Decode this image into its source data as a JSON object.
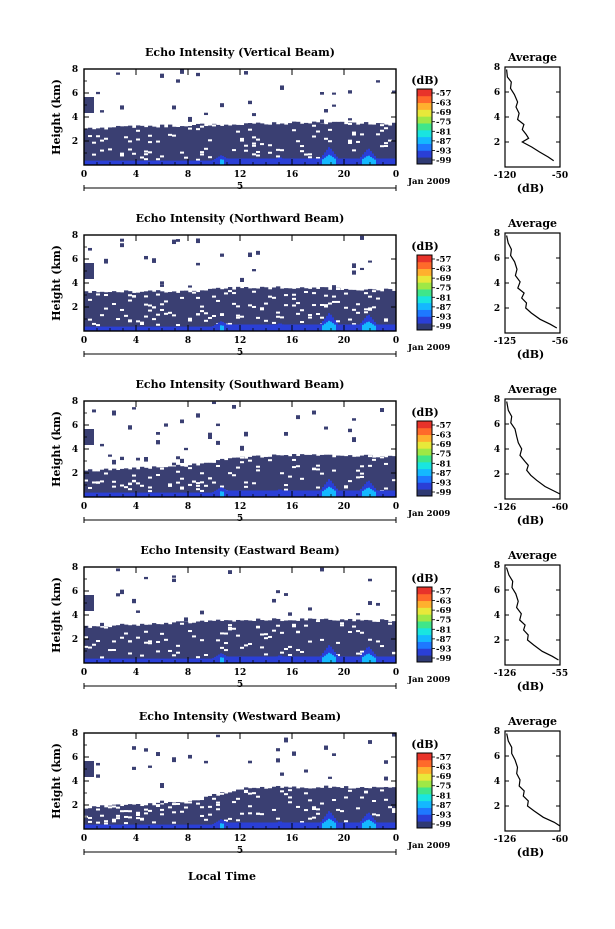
{
  "figure": {
    "xlabel": "Local Time",
    "date_label": "Jan 2009",
    "day_label": "5",
    "avg_title": "Average",
    "avg_xlabel": "(dB)",
    "colorbar_title": "(dB)",
    "colorbar_ticks": [
      "-57",
      "-63",
      "-69",
      "-75",
      "-81",
      "-87",
      "-93",
      "-99"
    ],
    "colormap": [
      "#2f3a73",
      "#2a3fd6",
      "#1e78ff",
      "#14b8ff",
      "#19e5e0",
      "#3fe68a",
      "#9fe846",
      "#e8e83a",
      "#ffb02e",
      "#ff6a2a",
      "#e8332a"
    ],
    "no_echo_color": "#ffffff",
    "panel_fill_color": "#3a3f72"
  },
  "chart_data": [
    {
      "type": "heatmap",
      "title": "Echo Intensity (Vertical Beam)",
      "ylabel": "Height (km)",
      "xlim": [
        0,
        24
      ],
      "ylim": [
        0,
        8
      ],
      "x_ticks": [
        "0",
        "4",
        "8",
        "12",
        "16",
        "20",
        "0"
      ],
      "y_ticks": [
        "2",
        "4",
        "6",
        "8"
      ],
      "colorbar_range": [
        -99,
        -57
      ],
      "echo_top_km": {
        "hours": [
          0,
          4,
          8,
          12,
          16,
          20,
          24
        ],
        "height": [
          3.0,
          3.2,
          3.3,
          3.4,
          3.5,
          3.5,
          3.4
        ]
      },
      "average_profile": {
        "xlim": [
          -120,
          -50
        ],
        "x_ticks": [
          "-120",
          "-50"
        ],
        "ylim": [
          0,
          8
        ],
        "y_ticks": [
          "2",
          "4",
          "6",
          "8"
        ],
        "dB": [
          -118,
          -117,
          -112,
          -113,
          -108,
          -104,
          -106,
          -102,
          -104,
          -96,
          -98,
          -93,
          -90,
          -98,
          -86,
          -76,
          -65,
          -58
        ],
        "height_km": [
          7.8,
          7.2,
          6.8,
          6.3,
          5.8,
          5.2,
          4.8,
          4.3,
          3.8,
          3.4,
          3.0,
          2.6,
          2.3,
          2.0,
          1.6,
          1.2,
          0.8,
          0.5
        ]
      }
    },
    {
      "type": "heatmap",
      "title": "Echo Intensity (Northward Beam)",
      "ylabel": "Height (km)",
      "xlim": [
        0,
        24
      ],
      "ylim": [
        0,
        8
      ],
      "x_ticks": [
        "0",
        "4",
        "8",
        "12",
        "16",
        "20",
        "0"
      ],
      "y_ticks": [
        "2",
        "4",
        "6",
        "8"
      ],
      "colorbar_range": [
        -99,
        -57
      ],
      "echo_top_km": {
        "hours": [
          0,
          4,
          8,
          12,
          16,
          20,
          24
        ],
        "height": [
          3.2,
          3.3,
          3.3,
          3.6,
          3.6,
          3.5,
          3.4
        ]
      },
      "average_profile": {
        "xlim": [
          -125,
          -56
        ],
        "x_ticks": [
          "-125",
          "-56"
        ],
        "ylim": [
          0,
          8
        ],
        "y_ticks": [
          "2",
          "4",
          "6",
          "8"
        ],
        "dB": [
          -123,
          -121,
          -117,
          -118,
          -113,
          -110,
          -112,
          -106,
          -109,
          -101,
          -104,
          -98,
          -99,
          -92,
          -81,
          -68,
          -60
        ],
        "height_km": [
          7.8,
          7.2,
          6.7,
          6.2,
          5.7,
          5.1,
          4.6,
          4.1,
          3.6,
          3.2,
          2.8,
          2.4,
          2.0,
          1.6,
          1.1,
          0.7,
          0.4
        ]
      }
    },
    {
      "type": "heatmap",
      "title": "Echo Intensity (Southward Beam)",
      "ylabel": "Height (km)",
      "xlim": [
        0,
        24
      ],
      "ylim": [
        0,
        8
      ],
      "x_ticks": [
        "0",
        "4",
        "8",
        "12",
        "16",
        "20",
        "0"
      ],
      "y_ticks": [
        "2",
        "4",
        "6",
        "8"
      ],
      "colorbar_range": [
        -99,
        -57
      ],
      "echo_top_km": {
        "hours": [
          0,
          4,
          8,
          12,
          16,
          20,
          24
        ],
        "height": [
          2.2,
          2.4,
          2.6,
          3.3,
          3.5,
          3.4,
          3.4
        ]
      },
      "average_profile": {
        "xlim": [
          -126,
          -60
        ],
        "x_ticks": [
          "-126",
          "-60"
        ],
        "ylim": [
          0,
          8
        ],
        "y_ticks": [
          "2",
          "4",
          "6",
          "8"
        ],
        "dB": [
          -124,
          -122,
          -118,
          -119,
          -114,
          -112,
          -110,
          -106,
          -108,
          -102,
          -98,
          -100,
          -95,
          -88,
          -78,
          -66,
          -60
        ],
        "height_km": [
          7.8,
          7.1,
          6.6,
          6.1,
          5.6,
          5.0,
          4.5,
          4.0,
          3.5,
          3.0,
          2.7,
          2.3,
          1.9,
          1.5,
          1.0,
          0.6,
          0.4
        ]
      }
    },
    {
      "type": "heatmap",
      "title": "Echo Intensity (Eastward Beam)",
      "ylabel": "Height (km)",
      "xlim": [
        0,
        24
      ],
      "ylim": [
        0,
        8
      ],
      "x_ticks": [
        "0",
        "4",
        "8",
        "12",
        "16",
        "20",
        "0"
      ],
      "y_ticks": [
        "2",
        "4",
        "6",
        "8"
      ],
      "colorbar_range": [
        -99,
        -57
      ],
      "echo_top_km": {
        "hours": [
          0,
          4,
          8,
          12,
          16,
          20,
          24
        ],
        "height": [
          3.0,
          3.2,
          3.4,
          3.6,
          3.6,
          3.6,
          3.5
        ]
      },
      "average_profile": {
        "xlim": [
          -126,
          -55
        ],
        "x_ticks": [
          "-126",
          "-55"
        ],
        "ylim": [
          0,
          8
        ],
        "y_ticks": [
          "2",
          "4",
          "6",
          "8"
        ],
        "dB": [
          -124,
          -121,
          -116,
          -117,
          -112,
          -109,
          -111,
          -105,
          -107,
          -100,
          -102,
          -96,
          -97,
          -89,
          -78,
          -65,
          -57
        ],
        "height_km": [
          7.8,
          7.2,
          6.7,
          6.2,
          5.7,
          5.1,
          4.6,
          4.1,
          3.6,
          3.2,
          2.8,
          2.4,
          2.0,
          1.6,
          1.1,
          0.7,
          0.4
        ]
      }
    },
    {
      "type": "heatmap",
      "title": "Echo Intensity (Westward Beam)",
      "ylabel": "Height (km)",
      "xlim": [
        0,
        24
      ],
      "ylim": [
        0,
        8
      ],
      "x_ticks": [
        "0",
        "4",
        "8",
        "12",
        "16",
        "20",
        "0"
      ],
      "y_ticks": [
        "2",
        "4",
        "6",
        "8"
      ],
      "colorbar_range": [
        -99,
        -57
      ],
      "echo_top_km": {
        "hours": [
          0,
          4,
          8,
          12,
          16,
          20,
          24
        ],
        "height": [
          1.8,
          2.0,
          2.2,
          3.4,
          3.5,
          3.5,
          3.4
        ]
      },
      "average_profile": {
        "xlim": [
          -126,
          -60
        ],
        "x_ticks": [
          "-126",
          "-60"
        ],
        "ylim": [
          0,
          8
        ],
        "y_ticks": [
          "2",
          "4",
          "6",
          "8"
        ],
        "dB": [
          -124,
          -122,
          -118,
          -118,
          -114,
          -111,
          -112,
          -108,
          -109,
          -103,
          -104,
          -98,
          -99,
          -91,
          -80,
          -67,
          -60
        ],
        "height_km": [
          7.8,
          7.2,
          6.7,
          6.2,
          5.7,
          5.1,
          4.6,
          4.1,
          3.6,
          3.2,
          2.8,
          2.4,
          2.0,
          1.6,
          1.1,
          0.7,
          0.4
        ]
      }
    }
  ]
}
